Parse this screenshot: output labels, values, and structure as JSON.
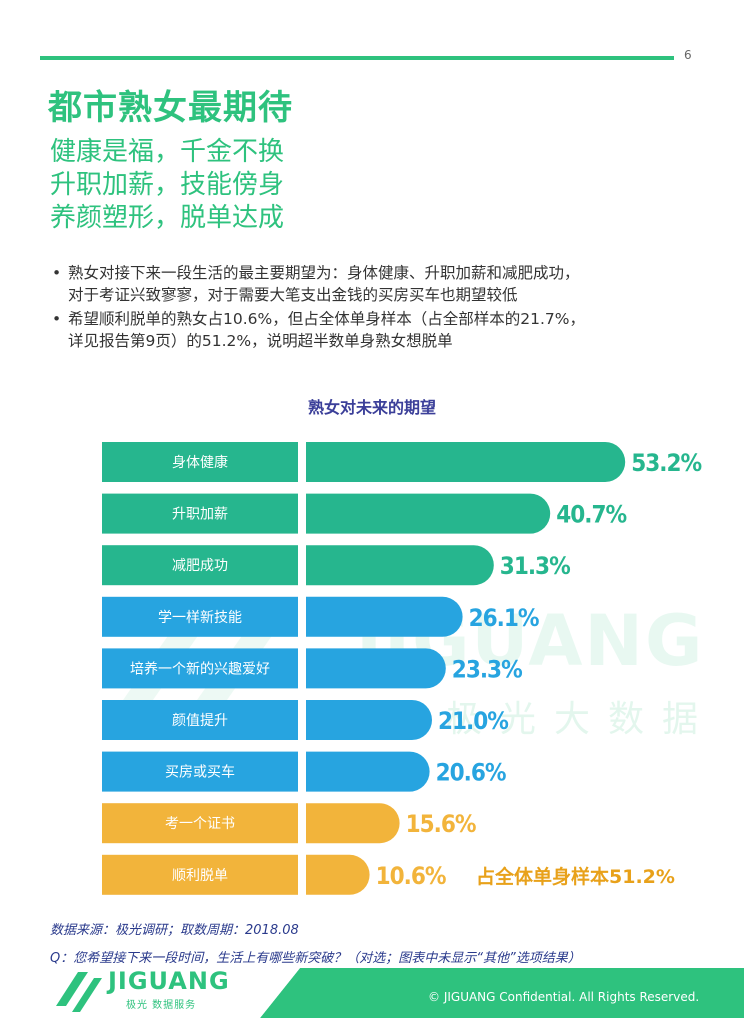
{
  "page": {
    "number": "6"
  },
  "header": {
    "title": "都市熟女最期待",
    "subtitles": [
      "健康是福，千金不换",
      "升职加薪，技能傍身",
      "养颜塑形，脱单达成"
    ]
  },
  "bullets": [
    {
      "lines": [
        "熟女对接下来一段生活的最主要期望为：身体健康、升职加薪和减肥成功，",
        "对于考证兴致寥寥，对于需要大笔支出金钱的买房买车也期望较低"
      ]
    },
    {
      "lines": [
        "希望顺利脱单的熟女占10.6%，但占全体单身样本（占全部样本的21.7%，",
        "详见报告第9页）的51.2%，说明超半数单身熟女想脱单"
      ]
    }
  ],
  "chart_data": {
    "type": "bar",
    "orientation": "horizontal",
    "title": "熟女对未来的期望",
    "categories": [
      "身体健康",
      "升职加薪",
      "减肥成功",
      "学一样新技能",
      "培养一个新的兴趣爱好",
      "颜值提升",
      "买房或买车",
      "考一个证书",
      "顺利脱单"
    ],
    "values": [
      53.2,
      40.7,
      31.3,
      26.1,
      23.3,
      21.0,
      20.6,
      15.6,
      10.6
    ],
    "value_labels": [
      "53.2%",
      "40.7%",
      "31.3%",
      "26.1%",
      "23.3%",
      "21.0%",
      "20.6%",
      "15.6%",
      "10.6%"
    ],
    "unit": "%",
    "colors": [
      "#26b68e",
      "#26b68e",
      "#26b68e",
      "#27a4e0",
      "#27a4e0",
      "#27a4e0",
      "#27a4e0",
      "#f2b43b",
      "#f2b43b"
    ],
    "annotation": "占全体单身样本51.2%",
    "annotation_color": "#e8a11a",
    "grid": false
  },
  "watermark": {
    "text": "JIGUANG",
    "subtext": "极光大数据"
  },
  "notes": {
    "source": "数据来源：极光调研；取数周期：2018.08",
    "question": "Q：您希望接下来一段时间，生活上有哪些新突破？（对选；图表中未显示“其他”选项结果）"
  },
  "footer": {
    "logo_text": "JIGUANG",
    "logo_sub": "极光 数据服务",
    "copyright": "© JIGUANG Confidential. All Rights Reserved."
  },
  "colors": {
    "brand_green": "#2ec27e",
    "navy": "#2a3a8c"
  }
}
